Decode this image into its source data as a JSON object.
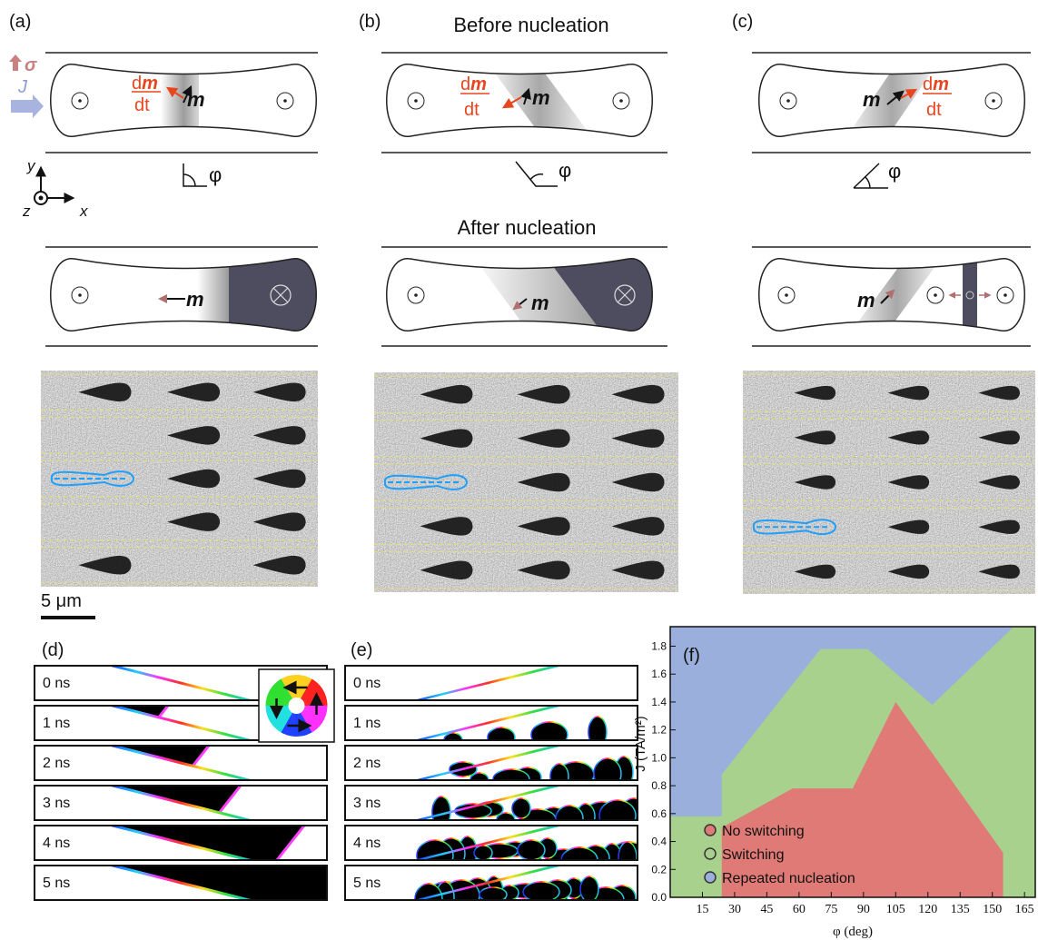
{
  "panel_labels": [
    "(a)",
    "(b)",
    "(c)",
    "(d)",
    "(e)",
    "(f)"
  ],
  "headings": [
    "Before nucleation",
    "After nucleation"
  ],
  "symbols": {
    "m": "m",
    "d": "d",
    "dt": "dt",
    "phi": "φ",
    "sigma": "σ",
    "J": "J",
    "x": "x",
    "y": "y",
    "z": "z"
  },
  "scale_bar": "5 μm",
  "time_labels": [
    "0 ns",
    "1 ns",
    "2 ns",
    "3 ns",
    "4 ns",
    "5 ns"
  ],
  "chart_data": {
    "type": "area",
    "x_label": "φ (deg)",
    "y_label": "J (TA/m²)",
    "xlim": [
      0,
      170
    ],
    "ylim": [
      0,
      1.94
    ],
    "xticks": [
      15,
      30,
      45,
      60,
      75,
      90,
      105,
      120,
      135,
      150,
      165
    ],
    "yticks": [
      {
        "value": 0,
        "label": "0.0"
      },
      0.2,
      0.4,
      0.6,
      0.8,
      {
        "value": 1,
        "label": "1.0"
      },
      1.2,
      1.4,
      1.6,
      1.8
    ],
    "legend_position": "lower left",
    "series": [
      {
        "name": "No switching",
        "color": "#e07a76",
        "x": [
          24,
          24,
          57,
          85,
          105,
          155,
          155
        ],
        "values": [
          0,
          0.5,
          0.78,
          0.78,
          1.4,
          0.32,
          0
        ]
      },
      {
        "name": "Switching",
        "color": "#a9d18e"
      },
      {
        "name": "Repeated nucleation",
        "color": "#9aafdc",
        "x": [
          0,
          24,
          24,
          70,
          92,
          122,
          160
        ],
        "values": [
          0.58,
          0.58,
          0.88,
          1.78,
          1.78,
          1.38,
          1.94
        ]
      }
    ]
  }
}
